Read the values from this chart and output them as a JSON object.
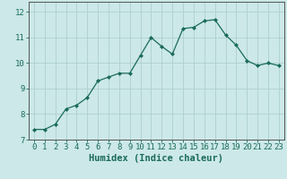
{
  "x": [
    0,
    1,
    2,
    3,
    4,
    5,
    6,
    7,
    8,
    9,
    10,
    11,
    12,
    13,
    14,
    15,
    16,
    17,
    18,
    19,
    20,
    21,
    22,
    23
  ],
  "y": [
    7.4,
    7.4,
    7.6,
    8.2,
    8.35,
    8.65,
    9.3,
    9.45,
    9.6,
    9.6,
    10.3,
    11.0,
    10.65,
    10.35,
    11.35,
    11.4,
    11.65,
    11.7,
    11.1,
    10.7,
    10.1,
    9.9,
    10.0,
    9.9
  ],
  "line_color": "#1a6b5a",
  "marker": "D",
  "marker_size": 2.0,
  "bg_color": "#cce8e8",
  "grid_color": "#aed0d0",
  "xlabel": "Humidex (Indice chaleur)",
  "xlim": [
    -0.5,
    23.5
  ],
  "ylim": [
    7.0,
    12.4
  ],
  "xticks": [
    0,
    1,
    2,
    3,
    4,
    5,
    6,
    7,
    8,
    9,
    10,
    11,
    12,
    13,
    14,
    15,
    16,
    17,
    18,
    19,
    20,
    21,
    22,
    23
  ],
  "yticks": [
    7,
    8,
    9,
    10,
    11,
    12
  ],
  "tick_fontsize": 6.5,
  "xlabel_fontsize": 7.5,
  "label_color": "#1a6b5a",
  "spine_color": "#555555"
}
